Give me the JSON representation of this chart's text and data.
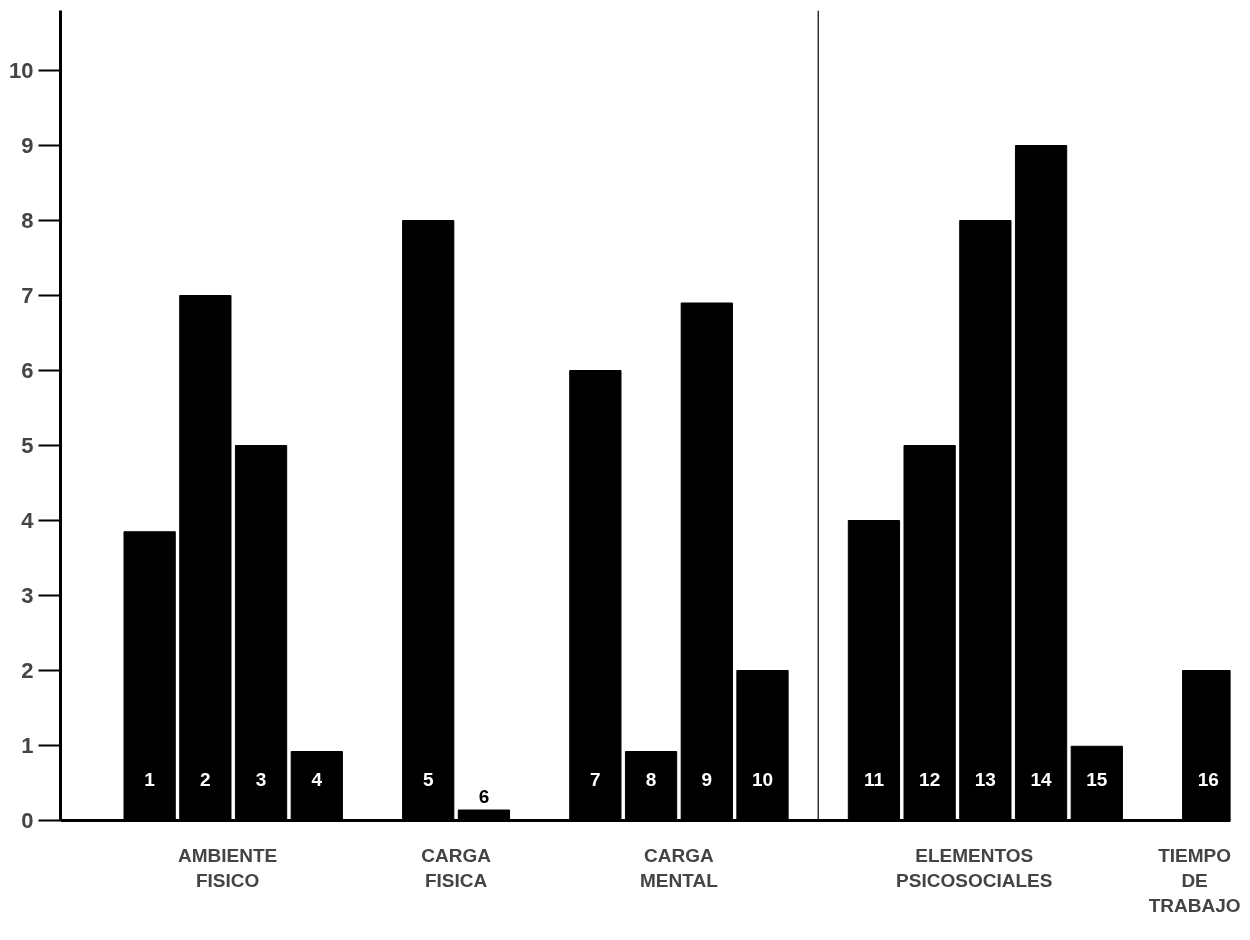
{
  "chart_data": {
    "type": "bar",
    "categories": [
      "1",
      "2",
      "3",
      "4",
      null,
      "5",
      "6",
      null,
      "7",
      "8",
      "9",
      "10",
      null,
      "11",
      "12",
      "13",
      "14",
      "15",
      null,
      "16"
    ],
    "values": [
      3.85,
      7,
      5,
      0.92,
      null,
      8,
      0.14,
      null,
      6,
      0.92,
      6.9,
      2,
      null,
      4,
      5,
      8,
      9,
      0.99,
      null,
      2
    ],
    "color": "#000000",
    "ylim": [
      0,
      10.8
    ],
    "yticks": [
      0,
      1,
      2,
      3,
      4,
      5,
      6,
      7,
      8,
      9,
      10
    ],
    "annotations": [
      "AMBIENTE\nFISICO",
      "CARGA\nFISICA",
      "CARGA\nMENTAL",
      "ELEMENTOS\nPSICOSOCIALES",
      "TIEMPO\nDE\nTRABAJO"
    ]
  }
}
